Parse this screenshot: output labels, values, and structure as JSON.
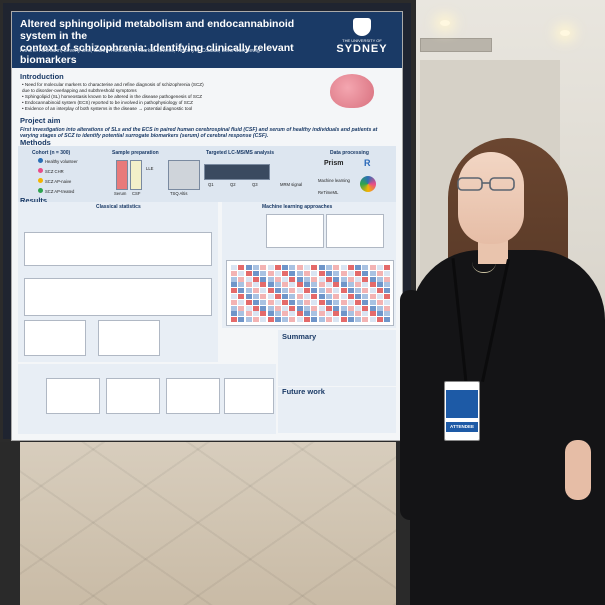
{
  "poster": {
    "title_line1": "Altered sphingolipid metabolism and endocannabinoid system in the",
    "title_line2": "context of schizophrenia: Identifying clinically relevant biomarkers",
    "authors": "Anna E. Hoffmann, Beverly Jieu, Cathrin Rohleder, F. Markus Leweke, Timothy A. Couttas, Boris Guennewig",
    "logo_uni": "THE UNIVERSITY OF",
    "logo_city": "SYDNEY",
    "intro_heading": "Introduction",
    "intro_points": [
      "• Need for molecular markers to characterise and refine diagnosis of schizophrenia (SCZ)",
      "  due to disorder-overlapping and subthreshold symptoms",
      "• Sphingolipid (SL) homeostasis known to be altered in the disease pathogenesis of SCZ",
      "• Endocannabinoid system (ECS) reported to be involved in pathophysiology of SCZ",
      "• Evidence of an interplay of both systems in the disease → potential diagnostic tool"
    ],
    "aim_heading": "Project aim",
    "aim_text": "First investigation into alterations of SLs and the ECS in paired human cerebrospinal fluid (CSF) and serum of healthy individuals and patients at varying stages of SCZ to identify potential surrogate biomarkers (serum) of cerebral response (CSF).",
    "methods_heading": "Methods",
    "cohort_label": "Cohort (n = 300)",
    "cohort_groups": [
      "Healthy volunteer",
      "SCZ CHR",
      "SCZ AP-naive",
      "SCZ AP-treated"
    ],
    "sample_prep_label": "Sample preparation",
    "sample_items": [
      "Serum",
      "CSF",
      "LLE"
    ],
    "lcms_label": "Targeted LC-MS/MS analysis",
    "lcms_items": [
      "TSQ Altis",
      "Q1",
      "Q2",
      "Q3",
      "MRM signal"
    ],
    "data_label": "Data processing",
    "data_items": [
      "Prism",
      "R",
      "Machine learning",
      "ReTimeML"
    ],
    "results_heading": "Results",
    "classical_label": "Classical statistics",
    "ml_label": "Machine learning approaches",
    "summary_heading": "Summary",
    "future_heading": "Future work",
    "attendee": "ATTENDEE"
  },
  "colors": {
    "header": "#1a3a66",
    "panel": "#e8eef5",
    "dress": "#141416",
    "hair": "#5a3a28"
  }
}
